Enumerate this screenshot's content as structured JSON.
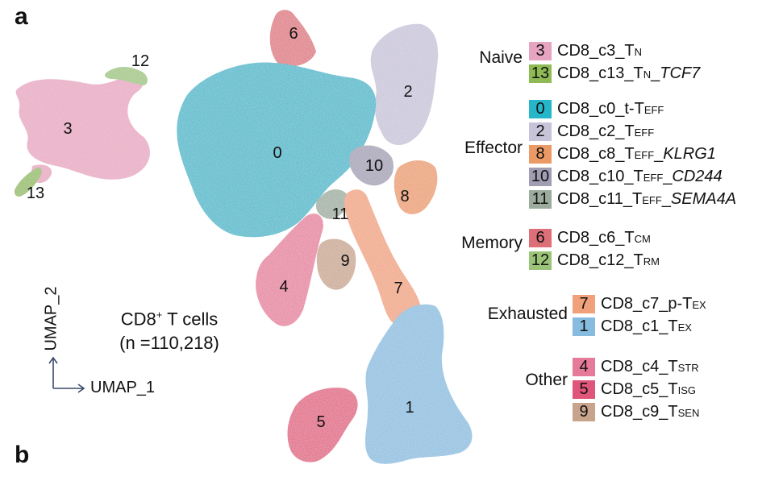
{
  "panels": {
    "a": "a",
    "b": "b"
  },
  "title": {
    "line1_pre": "CD8",
    "line1_sup": "+",
    "line1_post": " T cells",
    "line2": "(n =110,218)"
  },
  "axes": {
    "x": "UMAP_1",
    "y": "UMAP_2"
  },
  "legend": [
    {
      "group": "Naive",
      "items": [
        {
          "id": "3",
          "color": "#e7a4c0",
          "pre": "CD8_c3_T",
          "sub": "N",
          "post": "",
          "ital": ""
        },
        {
          "id": "13",
          "color": "#8fba54",
          "pre": "CD8_c13_T",
          "sub": "N",
          "post": "_",
          "ital": "TCF7"
        }
      ]
    },
    {
      "group": "Effector",
      "items": [
        {
          "id": "0",
          "color": "#26b6c9",
          "pre": "CD8_c0_t-T",
          "sub": "EFF",
          "post": "",
          "ital": ""
        },
        {
          "id": "2",
          "color": "#c7c3d9",
          "pre": "CD8_c2_T",
          "sub": "EFF",
          "post": "",
          "ital": ""
        },
        {
          "id": "8",
          "color": "#eb9a65",
          "pre": "CD8_c8_T",
          "sub": "EFF",
          "post": "_",
          "ital": "KLRG1"
        },
        {
          "id": "10",
          "color": "#a19eb4",
          "pre": "CD8_c10_T",
          "sub": "EFF",
          "post": "_",
          "ital": "CD244"
        },
        {
          "id": "11",
          "color": "#9bab9c",
          "pre": "CD8_c11_T",
          "sub": "EFF",
          "post": "_",
          "ital": "SEMA4A"
        }
      ]
    },
    {
      "group": "Memory",
      "items": [
        {
          "id": "6",
          "color": "#dd6f79",
          "pre": "CD8_c6_T",
          "sub": "CM",
          "post": "",
          "ital": ""
        },
        {
          "id": "12",
          "color": "#9cc479",
          "pre": "CD8_c12_T",
          "sub": "RM",
          "post": "",
          "ital": ""
        }
      ]
    },
    {
      "group": "Exhausted",
      "items": [
        {
          "id": "7",
          "color": "#f0a07a",
          "pre": "CD8_c7_p-T",
          "sub": "EX",
          "post": "",
          "ital": ""
        },
        {
          "id": "1",
          "color": "#86bcdf",
          "pre": "CD8_c1_T",
          "sub": "EX",
          "post": "",
          "ital": ""
        }
      ]
    },
    {
      "group": "Other",
      "items": [
        {
          "id": "4",
          "color": "#e57a9a",
          "pre": "CD8_c4_T",
          "sub": "STR",
          "post": "",
          "ital": ""
        },
        {
          "id": "5",
          "color": "#e0557a",
          "pre": "CD8_c5_T",
          "sub": "ISG",
          "post": "",
          "ital": ""
        },
        {
          "id": "9",
          "color": "#c9a48c",
          "pre": "CD8_c9_T",
          "sub": "SEN",
          "post": "",
          "ital": ""
        }
      ]
    }
  ],
  "chart_data": {
    "type": "scatter",
    "title": "CD8+ T cells (n =110,218)",
    "xlabel": "UMAP_1",
    "ylabel": "UMAP_2",
    "grid": false,
    "legend_placement": "right",
    "series": [
      {
        "name": "3",
        "color": "#e7a4c0"
      },
      {
        "name": "13",
        "color": "#8fba54"
      },
      {
        "name": "0",
        "color": "#26b6c9"
      },
      {
        "name": "2",
        "color": "#c7c3d9"
      },
      {
        "name": "8",
        "color": "#eb9a65"
      },
      {
        "name": "10",
        "color": "#a19eb4"
      },
      {
        "name": "11",
        "color": "#9bab9c"
      },
      {
        "name": "6",
        "color": "#dd6f79"
      },
      {
        "name": "12",
        "color": "#9cc479"
      },
      {
        "name": "7",
        "color": "#f0a07a"
      },
      {
        "name": "1",
        "color": "#86bcdf"
      },
      {
        "name": "4",
        "color": "#e57a9a"
      },
      {
        "name": "5",
        "color": "#e0557a"
      },
      {
        "name": "9",
        "color": "#c9a48c"
      }
    ]
  }
}
